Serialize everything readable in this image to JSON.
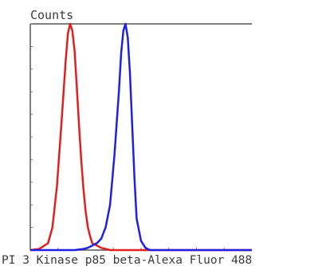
{
  "chart_data": {
    "type": "line",
    "title": "",
    "xlabel": "PI 3 Kinase p85 beta-Alexa Fluor 488",
    "ylabel": "Counts",
    "xlim": [
      0,
      100
    ],
    "ylim": [
      0,
      100
    ],
    "grid": false,
    "legend": "none",
    "series": [
      {
        "color": "#e02020",
        "x": [
          0,
          4,
          8,
          10,
          12,
          14,
          16,
          17,
          18,
          19,
          20,
          21,
          22,
          23,
          24,
          25,
          26,
          27,
          28,
          30,
          32,
          34,
          36,
          40,
          50,
          60,
          80,
          100
        ],
        "y": [
          0,
          0.5,
          3,
          10,
          28,
          55,
          84,
          96,
          100,
          97,
          88,
          72,
          55,
          40,
          27,
          17,
          10,
          6,
          3,
          2,
          1,
          0.5,
          0,
          0,
          0,
          0,
          0,
          0
        ]
      },
      {
        "color": "#2020e0",
        "x": [
          0,
          10,
          20,
          24,
          26,
          28,
          30,
          32,
          34,
          36,
          38,
          40,
          41,
          42,
          43,
          44,
          45,
          46,
          47,
          48,
          50,
          52,
          54,
          60,
          80,
          100
        ],
        "y": [
          0,
          0,
          0,
          0.5,
          1,
          2,
          3,
          5,
          10,
          20,
          42,
          70,
          87,
          97,
          100,
          94,
          78,
          55,
          32,
          14,
          4,
          1,
          0,
          0,
          0,
          0
        ]
      }
    ]
  }
}
